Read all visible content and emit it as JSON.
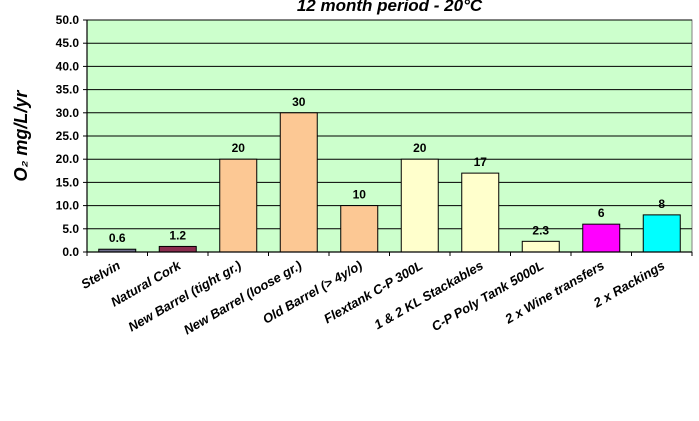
{
  "chart_data": {
    "type": "bar",
    "title": "12 month period - 20°C",
    "ylabel": "O₂ mg/L/yr",
    "xlabel": "",
    "ylim": [
      0,
      50
    ],
    "yticks": [
      "0.0",
      "5.0",
      "10.0",
      "15.0",
      "20.0",
      "25.0",
      "30.0",
      "35.0",
      "40.0",
      "45.0",
      "50.0"
    ],
    "grid": true,
    "categories": [
      "Stelvin",
      "Natural Cork",
      "New Barrel (tight gr.)",
      "New Barrel (loose gr.)",
      "Old Barrel (> 4y/o)",
      "Flextank C-P 300L",
      "1 & 2 KL Stackables",
      "C-P Poly Tank 5000L",
      "2 x Wine transfers",
      "2 x Rackings"
    ],
    "values": [
      0.6,
      1.2,
      20,
      30,
      10,
      20,
      17,
      2.3,
      6,
      8
    ],
    "data_labels": [
      "0.6",
      "1.2",
      "20",
      "30",
      "10",
      "20",
      "17",
      "2.3",
      "6",
      "8"
    ],
    "bar_colors": [
      "#6e6e8c",
      "#8b2c4e",
      "#fcc894",
      "#fcc894",
      "#fcc894",
      "#ffffcc",
      "#ffffcc",
      "#ffffcc",
      "#ff00ff",
      "#00ffff"
    ],
    "plot_background": "#ccffcc"
  }
}
